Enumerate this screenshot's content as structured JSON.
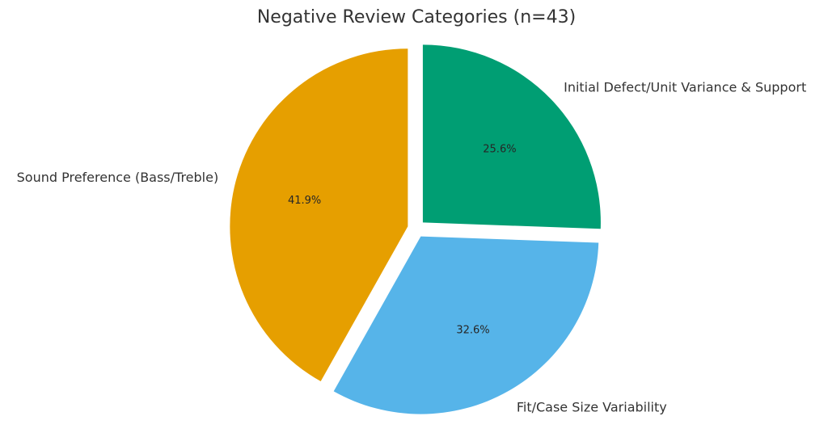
{
  "chart_data": {
    "type": "pie",
    "title": "Negative Review Categories (n=43)",
    "slices": [
      {
        "label": "Initial Defect/Unit Variance & Support",
        "percent_label": "25.6%",
        "value": 25.6,
        "color": "#009e73",
        "exploded": true
      },
      {
        "label": "Fit/Case Size Variability",
        "percent_label": "32.6%",
        "value": 32.6,
        "color": "#56b4e9",
        "exploded": true
      },
      {
        "label": "Sound Preference (Bass/Treble)",
        "percent_label": "41.9%",
        "value": 41.9,
        "color": "#e69f00",
        "exploded": true
      }
    ],
    "start_angle_deg": 90,
    "direction": "clockwise",
    "legend": "none"
  }
}
